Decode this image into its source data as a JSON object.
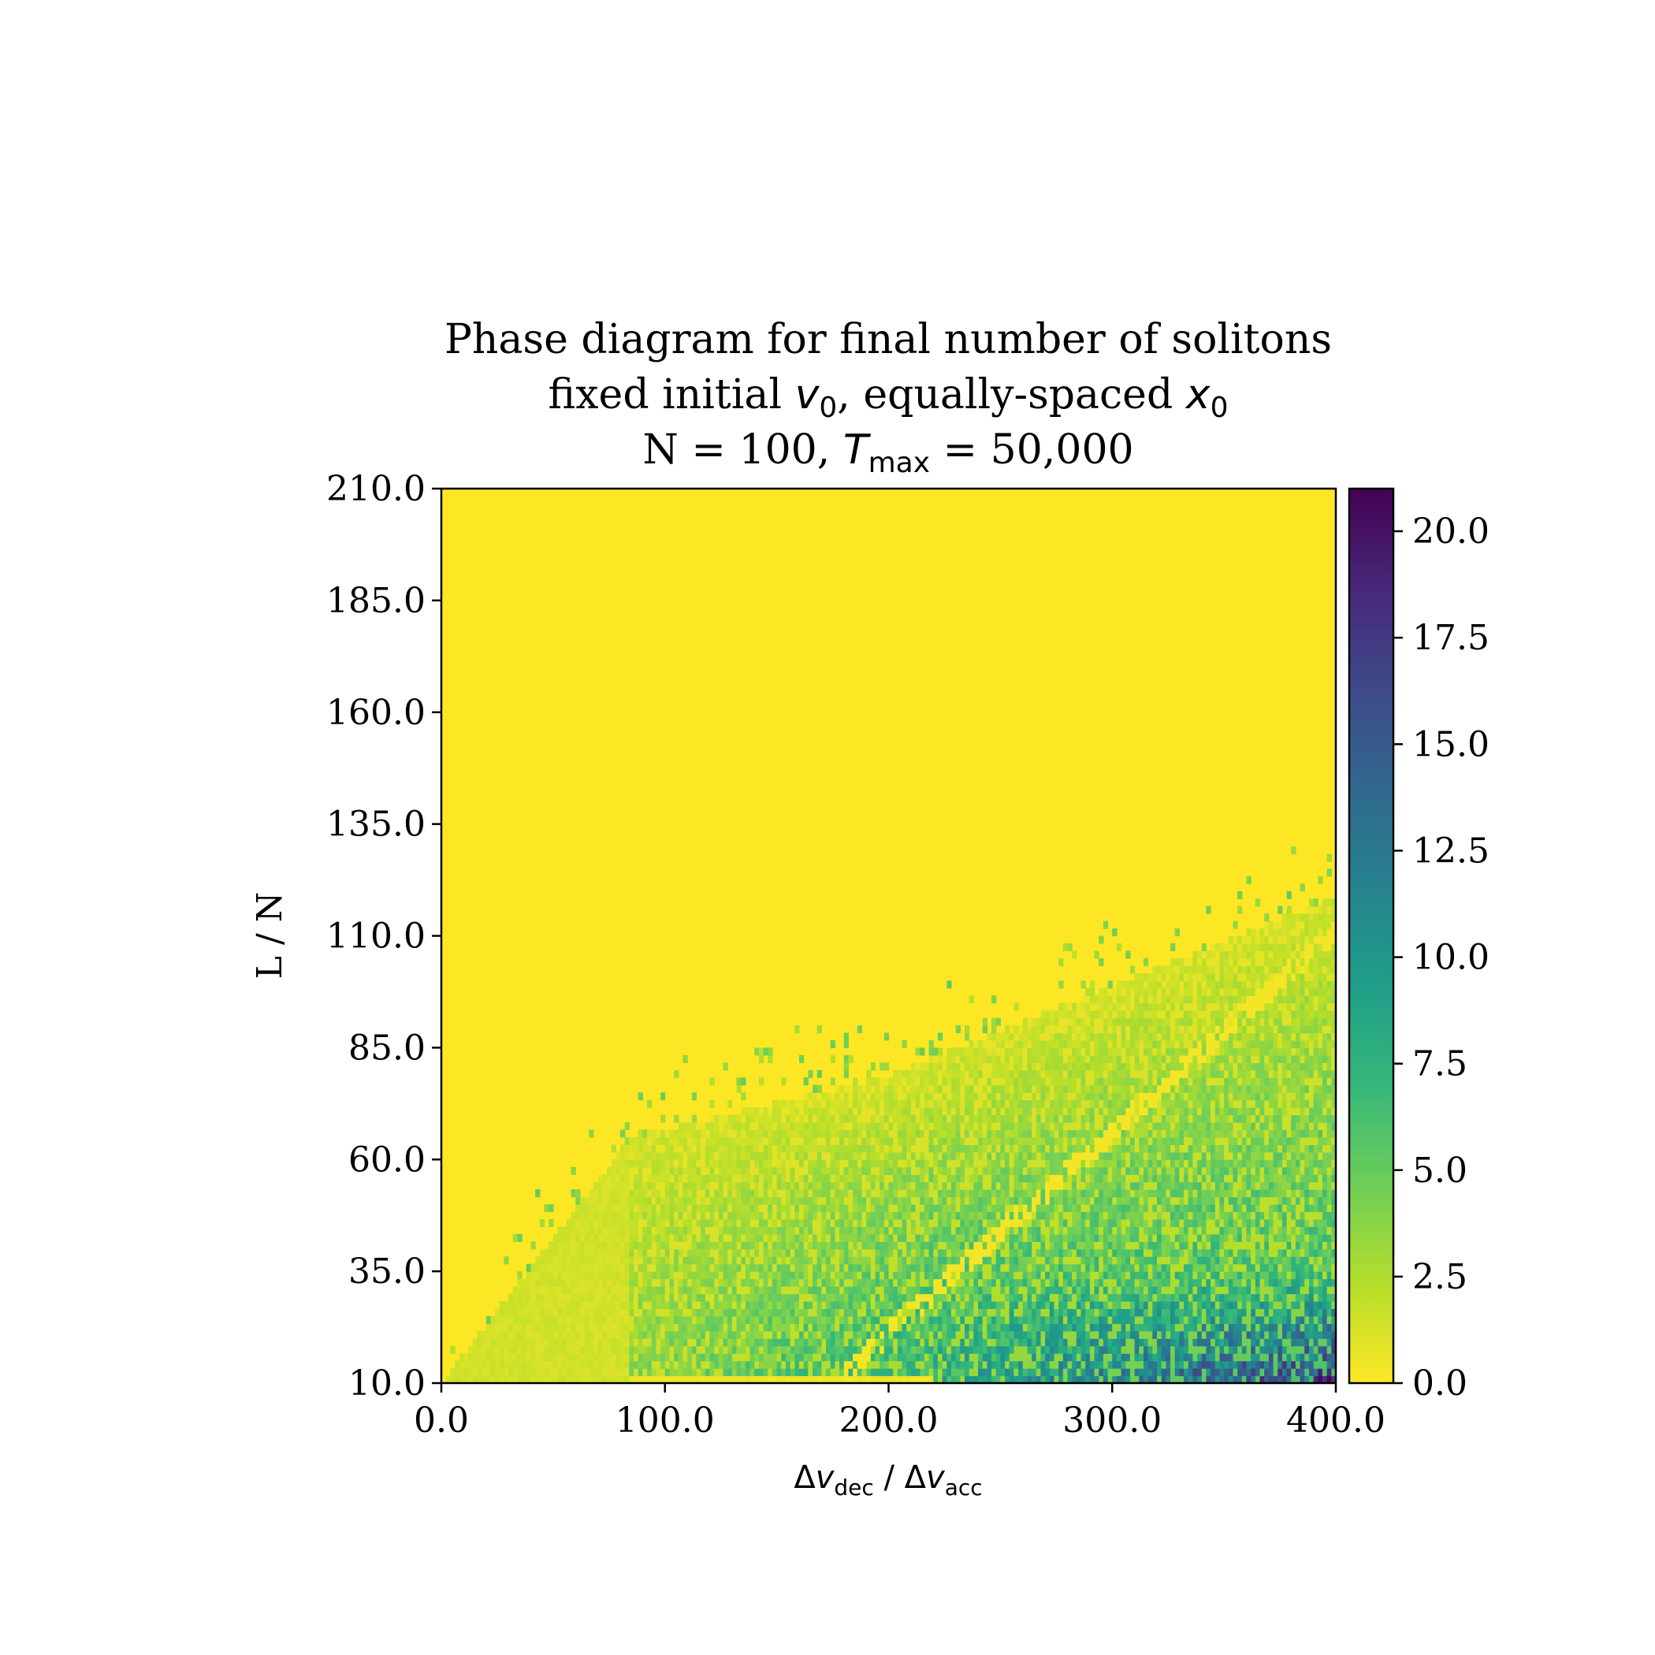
{
  "chart_data": {
    "type": "heatmap",
    "title_lines": [
      {
        "segments": [
          {
            "t": "Phase diagram for final number of solitons"
          }
        ]
      },
      {
        "segments": [
          {
            "t": "fixed initial "
          },
          {
            "t": "v",
            "style": "math"
          },
          {
            "t": "0",
            "style": "sub"
          },
          {
            "t": ", equally-spaced "
          },
          {
            "t": "x",
            "style": "math"
          },
          {
            "t": "0",
            "style": "sub"
          }
        ]
      },
      {
        "segments": [
          {
            "t": "N = 100, "
          },
          {
            "t": "T",
            "style": "math"
          },
          {
            "t": "max",
            "style": "sub"
          },
          {
            "t": " = 50,000"
          }
        ]
      }
    ],
    "xlabel": {
      "segments": [
        {
          "t": "Δ"
        },
        {
          "t": "v",
          "style": "math"
        },
        {
          "t": "dec",
          "style": "sub"
        },
        {
          "t": " / Δ"
        },
        {
          "t": "v",
          "style": "math"
        },
        {
          "t": "acc",
          "style": "sub"
        }
      ]
    },
    "ylabel": "L / N",
    "xlim": [
      0,
      400
    ],
    "ylim": [
      10,
      210
    ],
    "x_ticks": [
      "0.0",
      "100.0",
      "200.0",
      "300.0",
      "400.0"
    ],
    "y_ticks": [
      "10.0",
      "35.0",
      "60.0",
      "85.0",
      "110.0",
      "135.0",
      "160.0",
      "185.0",
      "210.0"
    ],
    "colorbar": {
      "colormap": "viridis_r",
      "range": [
        0,
        21
      ],
      "ticks": [
        "0.0",
        "2.5",
        "5.0",
        "7.5",
        "10.0",
        "12.5",
        "15.0",
        "17.5",
        "20.0"
      ],
      "stops": [
        "#fde725",
        "#b5de2b",
        "#6ece58",
        "#35b779",
        "#1f9e89",
        "#26828e",
        "#31688e",
        "#3e4989",
        "#482878",
        "#440154"
      ]
    },
    "grid": false,
    "description_regions": [
      {
        "region": "upper-left and top",
        "value": 0
      },
      {
        "region": "wedge from (0,10) to (~85,65)",
        "value": 1
      },
      {
        "region": "x 100-250, y 10-85",
        "value_range": [
          2,
          10
        ]
      },
      {
        "region": "x 250-400, y 10-35",
        "value_range": [
          10,
          21
        ]
      }
    ]
  }
}
